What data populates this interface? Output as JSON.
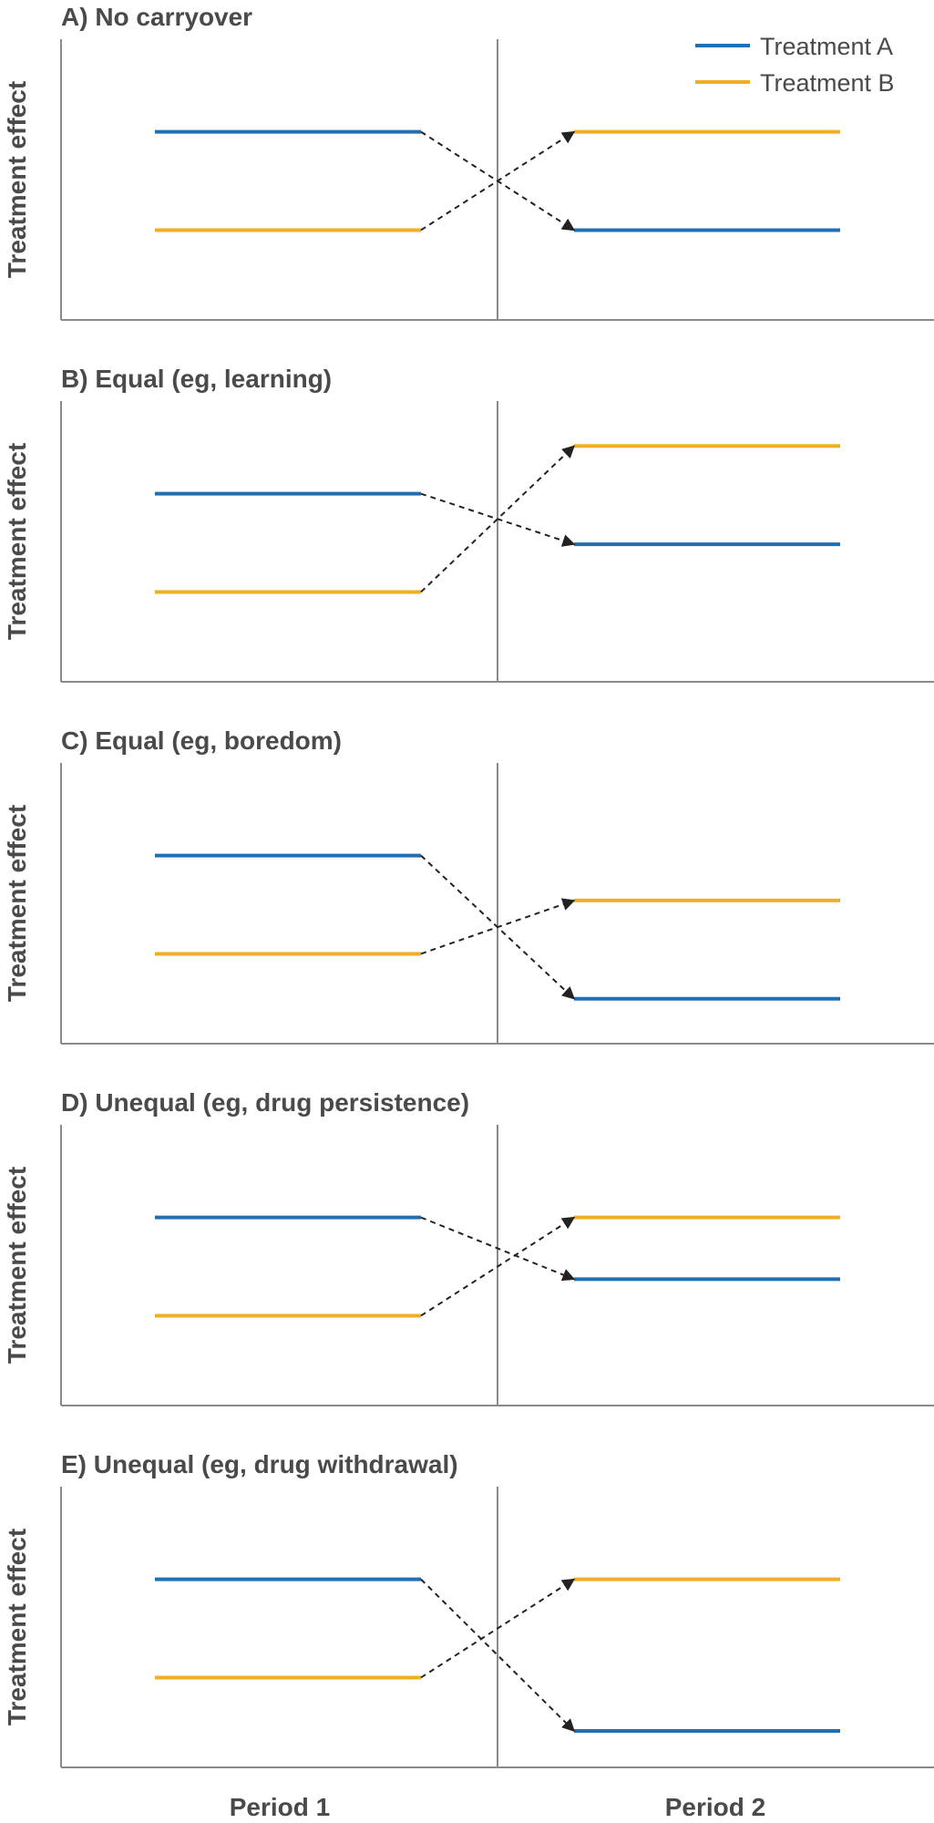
{
  "chart_data": {
    "type": "line",
    "ylabel": "Treatment effect",
    "period_labels": [
      "Period 1",
      "Period 2"
    ],
    "legend": {
      "placement": "top-right",
      "entries": [
        {
          "name": "Treatment A",
          "color": "#1f6fb2"
        },
        {
          "name": "Treatment B",
          "color": "#f2ad25"
        }
      ]
    },
    "colors": {
      "treatment_a": "#1f6fb2",
      "treatment_b": "#f2ad25",
      "arrows": "#222222",
      "axes": "#8a8a8a",
      "text": "#4a4a4a"
    },
    "panels": [
      {
        "title": "A) No carryover",
        "series": [
          {
            "name": "Treatment A",
            "period1": 0.67,
            "period2": 0.32
          },
          {
            "name": "Treatment B",
            "period1": 0.32,
            "period2": 0.67
          }
        ]
      },
      {
        "title": "B) Equal (eg, learning)",
        "series": [
          {
            "name": "Treatment A",
            "period1": 0.67,
            "period2": 0.49
          },
          {
            "name": "Treatment B",
            "period1": 0.32,
            "period2": 0.84
          }
        ]
      },
      {
        "title": "C) Equal (eg, boredom)",
        "series": [
          {
            "name": "Treatment A",
            "period1": 0.67,
            "period2": 0.16
          },
          {
            "name": "Treatment B",
            "period1": 0.32,
            "period2": 0.51
          }
        ]
      },
      {
        "title": "D) Unequal (eg, drug persistence)",
        "series": [
          {
            "name": "Treatment A",
            "period1": 0.67,
            "period2": 0.45
          },
          {
            "name": "Treatment B",
            "period1": 0.32,
            "period2": 0.67
          }
        ]
      },
      {
        "title": "E) Unequal (eg, drug withdrawal)",
        "series": [
          {
            "name": "Treatment A",
            "period1": 0.67,
            "period2": 0.13
          },
          {
            "name": "Treatment B",
            "period1": 0.32,
            "period2": 0.67
          }
        ]
      }
    ]
  }
}
